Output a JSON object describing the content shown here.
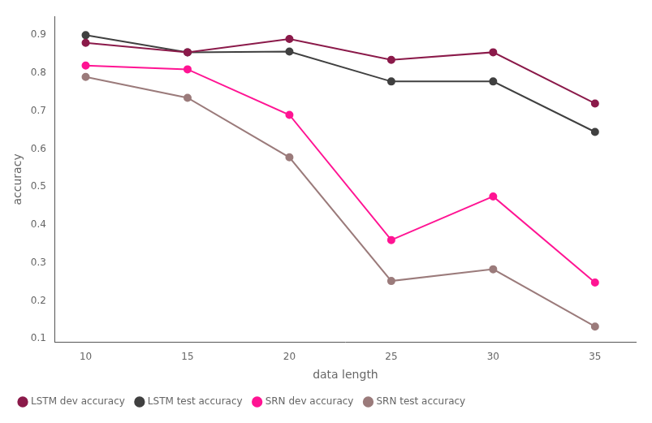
{
  "chart_data": {
    "type": "line",
    "x": [
      10,
      15,
      20,
      25,
      30,
      35
    ],
    "series": [
      {
        "name": "LSTM dev accuracy",
        "color": "#8B1A4A",
        "marker": "circle",
        "values": [
          0.88,
          0.855,
          0.89,
          0.835,
          0.855,
          0.72
        ]
      },
      {
        "name": "LSTM test accuracy",
        "color": "#404040",
        "marker": "circle",
        "values": [
          0.9,
          0.855,
          0.857,
          0.778,
          0.778,
          0.645
        ]
      },
      {
        "name": "SRN dev accuracy",
        "color": "#FF1493",
        "marker": "circle",
        "values": [
          0.82,
          0.81,
          0.69,
          0.36,
          0.475,
          0.248
        ]
      },
      {
        "name": "SRN test accuracy",
        "color": "#9B7B7B",
        "marker": "circle",
        "values": [
          0.79,
          0.735,
          0.578,
          0.252,
          0.283,
          0.132
        ]
      }
    ],
    "xlabel": "data length",
    "ylabel": "accuracy",
    "xlim": [
      8.5,
      37
    ],
    "xticks": [
      10,
      15,
      20,
      25,
      30,
      35
    ],
    "ylim": [
      0.09,
      0.95
    ],
    "yticks": [
      0.1,
      0.2,
      0.3,
      0.4,
      0.5,
      0.6,
      0.7,
      0.8,
      0.9
    ],
    "grid": false,
    "legend": "lower left"
  }
}
